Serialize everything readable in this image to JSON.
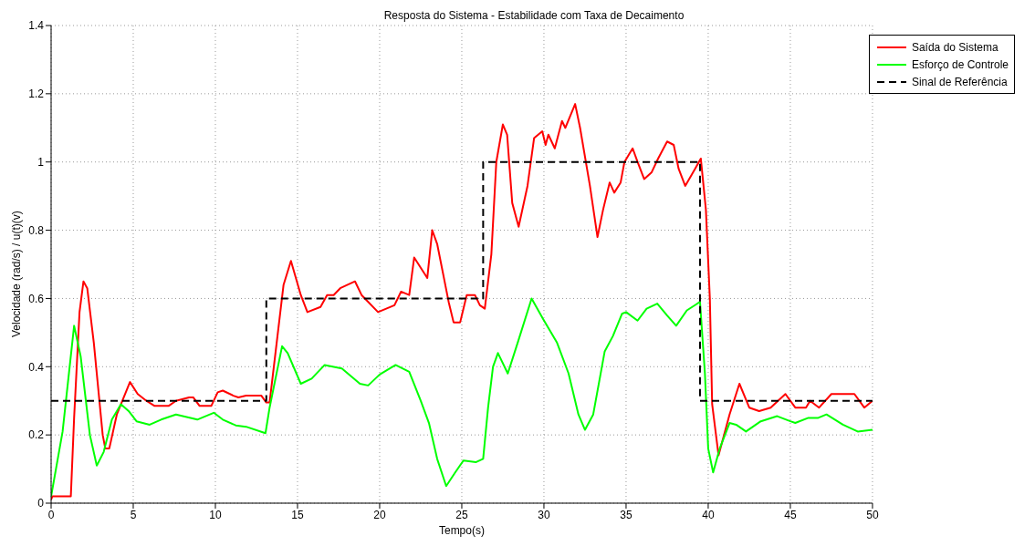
{
  "chart_data": {
    "type": "line",
    "title": "Resposta do Sistema - Estabilidade com Taxa de Decaimento",
    "xlabel": "Tempo(s)",
    "ylabel": "Velocidade (rad/s) / u(t)(v)",
    "xlim": [
      0,
      50
    ],
    "xticks": [
      0,
      5,
      10,
      15,
      20,
      25,
      30,
      35,
      40,
      45,
      50
    ],
    "ylim": [
      0,
      1.4
    ],
    "yticks": [
      0,
      0.2,
      0.4,
      0.6,
      0.8,
      1,
      1.2,
      1.4
    ],
    "grid": true,
    "legend": "top right",
    "marker": "none",
    "series": [
      {
        "name": "Saída do Sistema",
        "color": "#ff0000",
        "line_style": "solid",
        "x": [
          0,
          0.08,
          1.2,
          1.4,
          1.73,
          1.97,
          2.2,
          2.6,
          3.14,
          3.3,
          3.54,
          4.0,
          4.8,
          5.27,
          5.8,
          6.3,
          7.15,
          7.6,
          8.4,
          8.65,
          9.04,
          9.75,
          10.14,
          10.45,
          11.1,
          11.4,
          11.87,
          12.8,
          13.1,
          13.3,
          14.15,
          14.6,
          15.2,
          15.6,
          16.4,
          16.8,
          17.2,
          17.6,
          18.5,
          18.9,
          19.9,
          20.9,
          21.3,
          21.8,
          22.1,
          22.9,
          23.2,
          23.5,
          24.2,
          24.5,
          24.9,
          25.3,
          25.8,
          26.1,
          26.4,
          26.8,
          27.1,
          27.5,
          27.76,
          28.07,
          28.46,
          29.0,
          29.4,
          29.9,
          30.1,
          30.27,
          30.66,
          31.1,
          31.3,
          31.9,
          32.2,
          32.8,
          33.26,
          33.6,
          34.0,
          34.28,
          34.67,
          34.9,
          35.4,
          35.7,
          36.1,
          36.56,
          36.95,
          37.5,
          37.9,
          38.2,
          38.6,
          39.2,
          39.55,
          39.86,
          40.1,
          40.24,
          40.63,
          41.3,
          41.9,
          42.5,
          43.1,
          43.8,
          44.7,
          45.3,
          45.95,
          46.2,
          46.75,
          47.5,
          48.9,
          49.5,
          50
        ],
        "values": [
          0.01,
          0.02,
          0.02,
          0.25,
          0.56,
          0.65,
          0.63,
          0.47,
          0.2,
          0.16,
          0.16,
          0.26,
          0.355,
          0.32,
          0.3,
          0.285,
          0.285,
          0.3,
          0.31,
          0.31,
          0.285,
          0.285,
          0.325,
          0.33,
          0.315,
          0.31,
          0.315,
          0.315,
          0.295,
          0.295,
          0.64,
          0.71,
          0.61,
          0.56,
          0.575,
          0.61,
          0.61,
          0.63,
          0.65,
          0.61,
          0.56,
          0.58,
          0.62,
          0.61,
          0.72,
          0.66,
          0.8,
          0.76,
          0.59,
          0.53,
          0.53,
          0.61,
          0.61,
          0.58,
          0.57,
          0.73,
          1.0,
          1.11,
          1.08,
          0.88,
          0.81,
          0.93,
          1.07,
          1.09,
          1.05,
          1.08,
          1.04,
          1.12,
          1.1,
          1.17,
          1.1,
          0.93,
          0.78,
          0.86,
          0.94,
          0.91,
          0.94,
          1.0,
          1.04,
          1.0,
          0.95,
          0.97,
          1.01,
          1.06,
          1.05,
          0.98,
          0.93,
          0.98,
          1.01,
          0.86,
          0.6,
          0.29,
          0.14,
          0.26,
          0.35,
          0.28,
          0.27,
          0.28,
          0.32,
          0.28,
          0.28,
          0.3,
          0.28,
          0.32,
          0.32,
          0.28,
          0.3
        ]
      },
      {
        "name": "Esforço de Controle",
        "color": "#00ff00",
        "line_style": "solid",
        "x": [
          0,
          0.7,
          1.4,
          1.8,
          2.36,
          2.78,
          3.2,
          3.7,
          4.25,
          4.72,
          5.2,
          6.0,
          6.7,
          7.6,
          8.9,
          9.9,
          10.45,
          11.24,
          11.87,
          13.05,
          13.3,
          14.06,
          14.4,
          15.2,
          15.86,
          16.65,
          17.7,
          18.8,
          19.3,
          20.0,
          20.97,
          21.8,
          22.5,
          23.0,
          23.5,
          24.05,
          24.6,
          25.1,
          25.85,
          26.3,
          26.6,
          26.9,
          27.2,
          27.8,
          28.4,
          29.25,
          29.95,
          30.8,
          31.5,
          32.1,
          32.5,
          33.0,
          33.7,
          34.2,
          34.75,
          35.0,
          35.7,
          36.25,
          36.9,
          37.5,
          38.05,
          38.7,
          39.5,
          39.8,
          40.0,
          40.3,
          40.7,
          41.3,
          41.7,
          42.3,
          43.2,
          44.2,
          45.0,
          45.3,
          46.1,
          46.7,
          47.2,
          48.2,
          49.1,
          50
        ],
        "values": [
          0.02,
          0.21,
          0.52,
          0.43,
          0.2,
          0.11,
          0.15,
          0.245,
          0.29,
          0.27,
          0.24,
          0.23,
          0.245,
          0.26,
          0.245,
          0.265,
          0.245,
          0.228,
          0.224,
          0.205,
          0.28,
          0.46,
          0.44,
          0.35,
          0.365,
          0.405,
          0.395,
          0.35,
          0.345,
          0.377,
          0.405,
          0.385,
          0.3,
          0.235,
          0.13,
          0.05,
          0.09,
          0.125,
          0.12,
          0.13,
          0.28,
          0.4,
          0.44,
          0.38,
          0.47,
          0.6,
          0.54,
          0.47,
          0.38,
          0.26,
          0.215,
          0.26,
          0.445,
          0.49,
          0.555,
          0.56,
          0.535,
          0.57,
          0.585,
          0.55,
          0.52,
          0.565,
          0.59,
          0.38,
          0.16,
          0.09,
          0.16,
          0.235,
          0.23,
          0.21,
          0.24,
          0.255,
          0.24,
          0.235,
          0.25,
          0.25,
          0.26,
          0.23,
          0.21,
          0.215
        ]
      },
      {
        "name": "Sinal de Referência",
        "type": "step",
        "color": "#000000",
        "line_style": "dashed",
        "x": [
          0,
          13.1,
          26.3,
          39.5,
          50
        ],
        "values": [
          0.3,
          0.6,
          1,
          0.3,
          0.3
        ]
      }
    ]
  }
}
